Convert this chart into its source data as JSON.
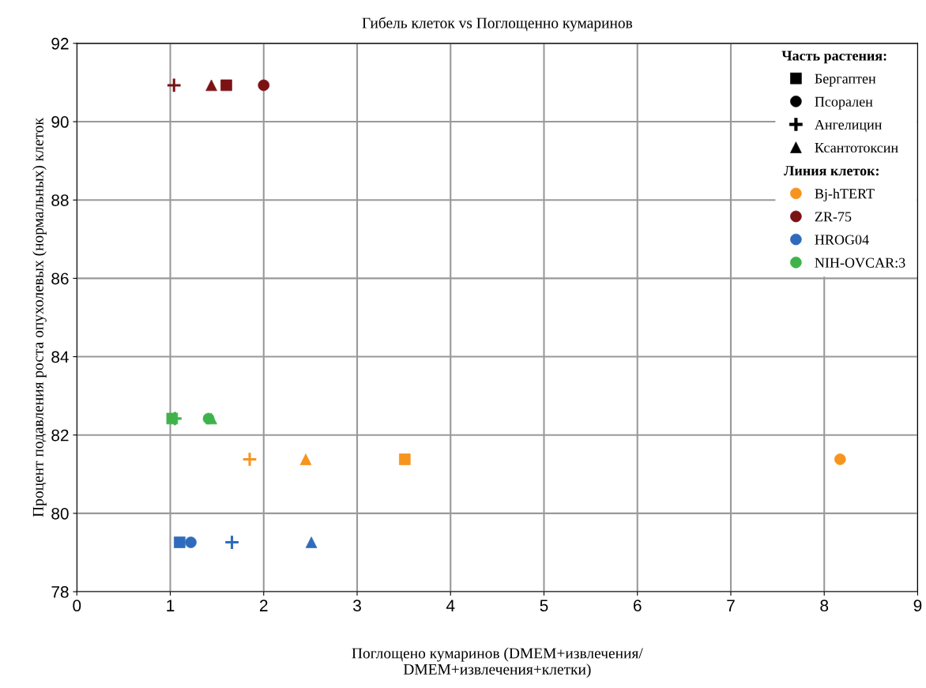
{
  "chart_data": {
    "type": "scatter",
    "title": "Гибель клеток vs Поглощенно кумаринов",
    "xlabel": "Поглощено кумаринов (DMEM+извлечения/\nDMEM+извлечения+клетки)",
    "ylabel": "Процент подавления роста опухолевых (нормальных) клеток",
    "xlim": [
      0,
      9
    ],
    "xticks": [
      0,
      1,
      2,
      3,
      4,
      5,
      6,
      7,
      8,
      9
    ],
    "ylim": [
      78,
      92
    ],
    "yticks": [
      78,
      80,
      82,
      84,
      86,
      88,
      90,
      92
    ],
    "grid": true,
    "legend": "top right",
    "legend_title": "Часть растения:",
    "annotations": [
      "Линия клеток:"
    ],
    "series": [
      {
        "color": "#7b1214",
        "marker": "square",
        "x": [
          1.6
        ],
        "values": [
          90.93
        ]
      },
      {
        "color": "#7b1214",
        "marker": "circle",
        "x": [
          2.0
        ],
        "values": [
          90.93
        ]
      },
      {
        "color": "#7b1214",
        "marker": "cross",
        "x": [
          1.04
        ],
        "values": [
          90.93
        ]
      },
      {
        "color": "#7b1214",
        "marker": "triangle",
        "x": [
          1.44
        ],
        "values": [
          90.93
        ]
      },
      {
        "color": "#3fb34a",
        "marker": "cross",
        "x": [
          1.05
        ],
        "values": [
          82.42
        ]
      },
      {
        "color": "#3fb34a",
        "marker": "square",
        "x": [
          1.02
        ],
        "values": [
          82.42
        ]
      },
      {
        "color": "#3fb34a",
        "marker": "circle",
        "x": [
          1.41
        ],
        "values": [
          82.42
        ]
      },
      {
        "color": "#3fb34a",
        "marker": "triangle",
        "x": [
          1.44
        ],
        "values": [
          82.42
        ]
      },
      {
        "color": "#f7941d",
        "marker": "cross",
        "x": [
          1.85
        ],
        "values": [
          81.38
        ]
      },
      {
        "color": "#f7941d",
        "marker": "triangle",
        "x": [
          2.45
        ],
        "values": [
          81.38
        ]
      },
      {
        "color": "#f7941d",
        "marker": "square",
        "x": [
          3.51
        ],
        "values": [
          81.38
        ]
      },
      {
        "color": "#f7941d",
        "marker": "circle",
        "x": [
          8.17
        ],
        "values": [
          81.38
        ]
      },
      {
        "color": "#2f6bbd",
        "marker": "square",
        "x": [
          1.1
        ],
        "values": [
          79.26
        ]
      },
      {
        "color": "#2f6bbd",
        "marker": "circle",
        "x": [
          1.22
        ],
        "values": [
          79.26
        ]
      },
      {
        "color": "#2f6bbd",
        "marker": "cross",
        "x": [
          1.66
        ],
        "values": [
          79.26
        ]
      },
      {
        "color": "#2f6bbd",
        "marker": "triangle",
        "x": [
          2.51
        ],
        "values": [
          79.26
        ]
      },
      {
        "name": "Бергаптен",
        "color": "#000000",
        "marker": "square"
      },
      {
        "name": "Псорален",
        "color": "#000000",
        "marker": "circle"
      },
      {
        "name": "Ангелицин",
        "color": "#000000",
        "marker": "cross"
      },
      {
        "name": "Ксантотоксин",
        "color": "#000000",
        "marker": "triangle"
      },
      {
        "name": "Bj-hTERT",
        "color": "#f7941d",
        "marker": "circle"
      },
      {
        "name": "ZR-75",
        "color": "#7b1214",
        "marker": "circle"
      },
      {
        "name": "HROG04",
        "color": "#2f6bbd",
        "marker": "circle"
      },
      {
        "name": "NIH-OVCAR:3",
        "color": "#3fb34a",
        "marker": "circle"
      }
    ]
  }
}
